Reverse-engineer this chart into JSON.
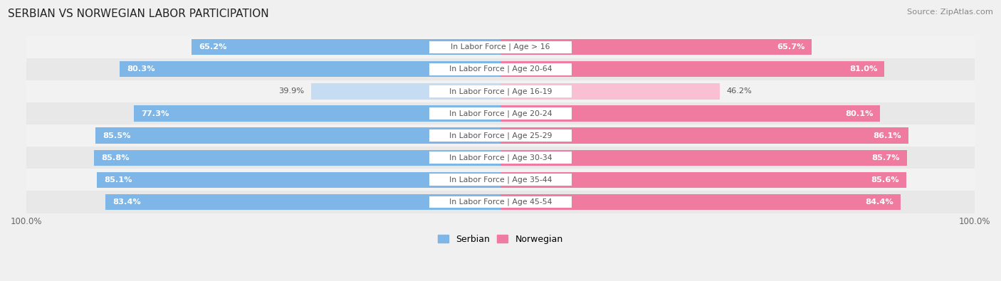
{
  "title": "SERBIAN VS NORWEGIAN LABOR PARTICIPATION",
  "source": "Source: ZipAtlas.com",
  "categories": [
    "In Labor Force | Age > 16",
    "In Labor Force | Age 20-64",
    "In Labor Force | Age 16-19",
    "In Labor Force | Age 20-24",
    "In Labor Force | Age 25-29",
    "In Labor Force | Age 30-34",
    "In Labor Force | Age 35-44",
    "In Labor Force | Age 45-54"
  ],
  "serbian": [
    65.2,
    80.3,
    39.9,
    77.3,
    85.5,
    85.8,
    85.1,
    83.4
  ],
  "norwegian": [
    65.7,
    81.0,
    46.2,
    80.1,
    86.1,
    85.7,
    85.6,
    84.4
  ],
  "serbian_color": "#7EB6E8",
  "serbian_color_light": "#C5DCF2",
  "norwegian_color": "#F07BA0",
  "norwegian_color_light": "#F8C0D2",
  "row_bg_odd": "#F2F2F2",
  "row_bg_even": "#E8E8E8",
  "max_val": 100.0,
  "label_fontsize": 8.5,
  "title_fontsize": 11,
  "legend_fontsize": 9
}
